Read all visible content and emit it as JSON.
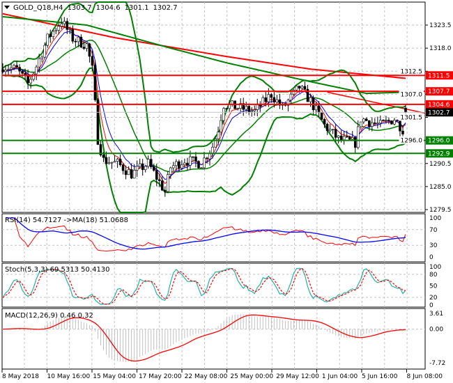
{
  "header": {
    "symbol": "GOLD_Q18,H4",
    "open": "1303.7",
    "high": "1304.6",
    "low": "1301.1",
    "close": "1302.7"
  },
  "indicators": {
    "rsi_label": "RSI(14) 54.7127  ->MA(18) 51.0688",
    "stoch_label": "Stoch(5,3,3) 69.5313 50.4130",
    "macd_label": "MACD(12,26,9) 0.46 0.32"
  },
  "colors": {
    "up": "#000000",
    "down": "#000000",
    "ma_fast": "#ff0000",
    "ma_slow": "#0000ff",
    "bands": "#008000",
    "long_red": "#ff0000",
    "long_green": "#008000",
    "rsi": "#ff0000",
    "rsi_ma": "#0000ff",
    "stoch_main": "#20b2aa",
    "stoch_signal": "#ff0000",
    "macd_hist": "#c0c0c0",
    "macd_signal": "#ff0000",
    "grid": "#c0c0c0"
  },
  "chart_data": {
    "type": "candlestick",
    "title": "GOLD_Q18,H4",
    "bar_count": 145,
    "ylim": [
      1279.5,
      1323.5
    ],
    "y_ticks": [
      "1323.5",
      "1318.0",
      "1312.5",
      "1307.0",
      "1301.5",
      "1296.0",
      "1290.5",
      "1285.0",
      "1279.5"
    ],
    "x_ticks": [
      "8 May 2018",
      "10 May 16:00",
      "15 May 04:00",
      "17 May 20:00",
      "22 May 08:00",
      "25 May 00:00",
      "29 May 12:00",
      "1 Jun 04:00",
      "5 Jun 16:00",
      "8 Jun 08:00"
    ],
    "last_bar": {
      "open": 1303.7,
      "high": 1304.6,
      "low": 1301.1,
      "close": 1302.7
    },
    "price_path": [
      [
        0,
        1313.7
      ],
      [
        5,
        1312.9
      ],
      [
        9,
        1309.5
      ],
      [
        12,
        1313.7
      ],
      [
        16,
        1320.3
      ],
      [
        21,
        1324.5
      ],
      [
        25,
        1320.3
      ],
      [
        30,
        1318.7
      ],
      [
        32,
        1312.9
      ],
      [
        34,
        1296.3
      ],
      [
        36,
        1291.3
      ],
      [
        41,
        1290.5
      ],
      [
        46,
        1288
      ],
      [
        52,
        1290.5
      ],
      [
        58,
        1283.8
      ],
      [
        60,
        1289.6
      ],
      [
        65,
        1291.3
      ],
      [
        71,
        1290.5
      ],
      [
        75,
        1294.6
      ],
      [
        77,
        1298.7
      ],
      [
        79,
        1304.6
      ],
      [
        85,
        1303.7
      ],
      [
        90,
        1302.9
      ],
      [
        96,
        1307
      ],
      [
        100,
        1303.7
      ],
      [
        106,
        1308.7
      ],
      [
        110,
        1305.4
      ],
      [
        115,
        1299.6
      ],
      [
        120,
        1296.3
      ],
      [
        126,
        1295.4
      ],
      [
        128,
        1301.2
      ],
      [
        135,
        1299.6
      ],
      [
        140,
        1301.2
      ],
      [
        143,
        1298.7
      ],
      [
        144,
        1302.7
      ]
    ],
    "long_ma_red": [
      [
        0,
        1326.2
      ],
      [
        40,
        1320.5
      ],
      [
        80,
        1316
      ],
      [
        110,
        1313
      ],
      [
        144,
        1310.8
      ]
    ],
    "trendline_red": [
      [
        116,
        1307.5
      ],
      [
        151,
        1302.5
      ]
    ],
    "long_ma_green": [
      [
        0,
        1325.5
      ],
      [
        30,
        1323.5
      ],
      [
        60,
        1318
      ],
      [
        80,
        1314.5
      ],
      [
        110,
        1310
      ],
      [
        130,
        1307.2
      ],
      [
        144,
        1307.5
      ]
    ],
    "levels": [
      {
        "price": 1311.5,
        "label": "1311.5",
        "color": "#ff0000"
      },
      {
        "price": 1307.7,
        "label": "1307.7",
        "color": "#ff0000"
      },
      {
        "price": 1304.6,
        "label": "1304.6",
        "color": "#ff0000"
      },
      {
        "price": 1296.0,
        "label": "1296.0",
        "color": "#008000"
      },
      {
        "price": 1292.9,
        "label": "1292.9",
        "color": "#008000"
      }
    ],
    "current_price": "1302.7",
    "rsi": {
      "period": 14,
      "ma": 18,
      "value": 54.7127,
      "ma_value": 51.0688,
      "ticks": [
        "100",
        "70",
        "30",
        "0"
      ]
    },
    "stoch": {
      "k": 5,
      "d": 3,
      "slow": 3,
      "main": 69.5313,
      "signal": 50.413,
      "ticks": [
        "100",
        "80",
        "50",
        "20",
        "0"
      ]
    },
    "macd": {
      "fast": 12,
      "slow": 26,
      "signal": 9,
      "main": 0.46,
      "signal_value": 0.32,
      "ticks": [
        "3.61",
        "0.00",
        "-7.72"
      ],
      "ylim": [
        -7.72,
        3.61
      ]
    }
  }
}
